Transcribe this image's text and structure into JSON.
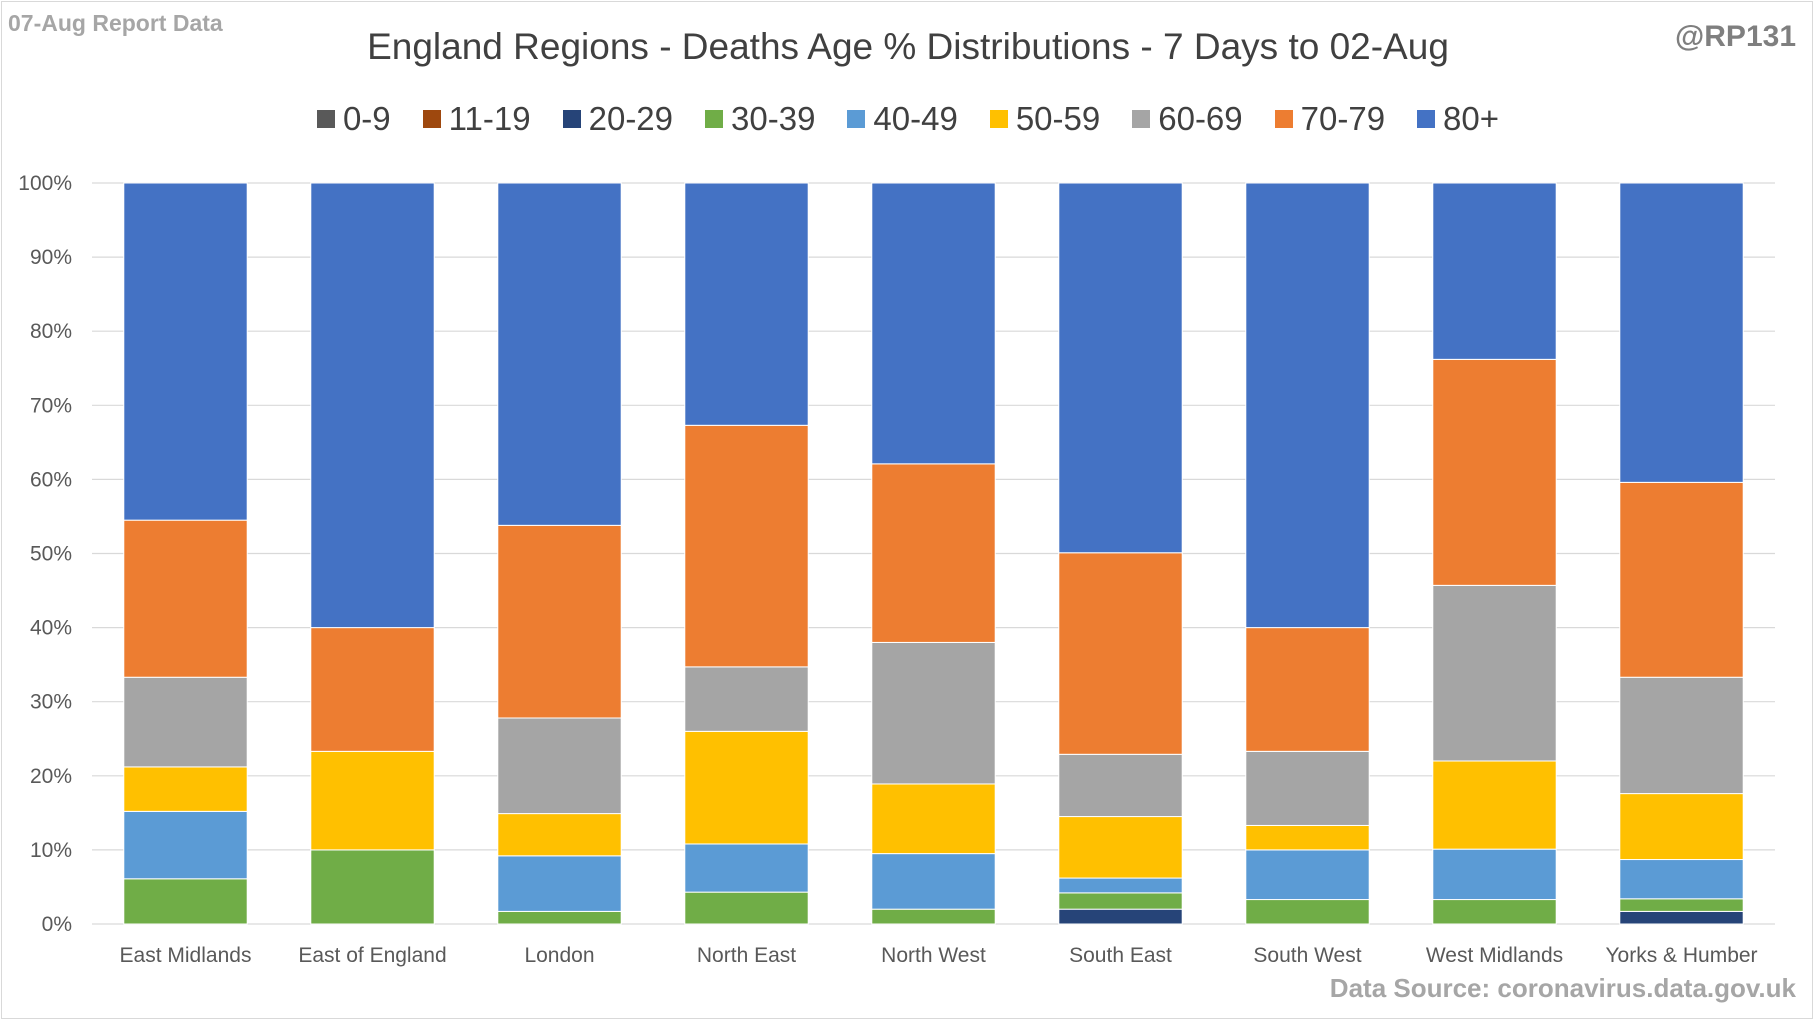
{
  "header": {
    "corner_note": "07-Aug Report Data",
    "handle": "@RP131",
    "source": "Data Source: coronavirus.data.gov.uk"
  },
  "chart_data": {
    "type": "bar",
    "stacked": true,
    "title": "England Regions - Deaths Age % Distributions - 7 Days to 02-Aug",
    "xlabel": "",
    "ylabel": "",
    "ylim": [
      0,
      100
    ],
    "y_ticks": [
      "0%",
      "10%",
      "20%",
      "30%",
      "40%",
      "50%",
      "60%",
      "70%",
      "80%",
      "90%",
      "100%"
    ],
    "grid": true,
    "legend_position": "top",
    "categories": [
      "East Midlands",
      "East of England",
      "London",
      "North East",
      "North West",
      "South East",
      "South West",
      "West Midlands",
      "Yorks & Humber"
    ],
    "series": [
      {
        "name": "0-9",
        "color": "#595959",
        "values": [
          0,
          0,
          0,
          0,
          0,
          0,
          0,
          0,
          0
        ]
      },
      {
        "name": "11-19",
        "color": "#9e480e",
        "values": [
          0,
          0,
          0,
          0,
          0,
          0,
          0,
          0,
          0
        ]
      },
      {
        "name": "20-29",
        "color": "#264478",
        "values": [
          0,
          0,
          0,
          0,
          0,
          2.0,
          0,
          0,
          1.7
        ]
      },
      {
        "name": "30-39",
        "color": "#70ad47",
        "values": [
          6.1,
          10.0,
          1.7,
          4.3,
          2.0,
          2.2,
          3.3,
          3.3,
          1.7
        ]
      },
      {
        "name": "40-49",
        "color": "#5b9bd5",
        "values": [
          9.1,
          0,
          7.5,
          6.5,
          7.5,
          2.0,
          6.7,
          6.8,
          5.3
        ]
      },
      {
        "name": "50-59",
        "color": "#ffc000",
        "values": [
          6.0,
          13.3,
          5.7,
          15.2,
          9.4,
          8.3,
          3.3,
          11.9,
          8.9
        ]
      },
      {
        "name": "60-69",
        "color": "#a5a5a5",
        "values": [
          12.1,
          0,
          12.9,
          8.7,
          19.1,
          8.4,
          10.0,
          23.7,
          15.7
        ]
      },
      {
        "name": "70-79",
        "color": "#ed7d31",
        "values": [
          21.2,
          16.7,
          26.0,
          32.6,
          24.1,
          27.2,
          16.7,
          30.5,
          26.3
        ]
      },
      {
        "name": "80+",
        "color": "#4472c4",
        "values": [
          45.5,
          60.0,
          46.2,
          32.7,
          37.9,
          49.9,
          60.0,
          23.8,
          40.4
        ]
      }
    ]
  }
}
